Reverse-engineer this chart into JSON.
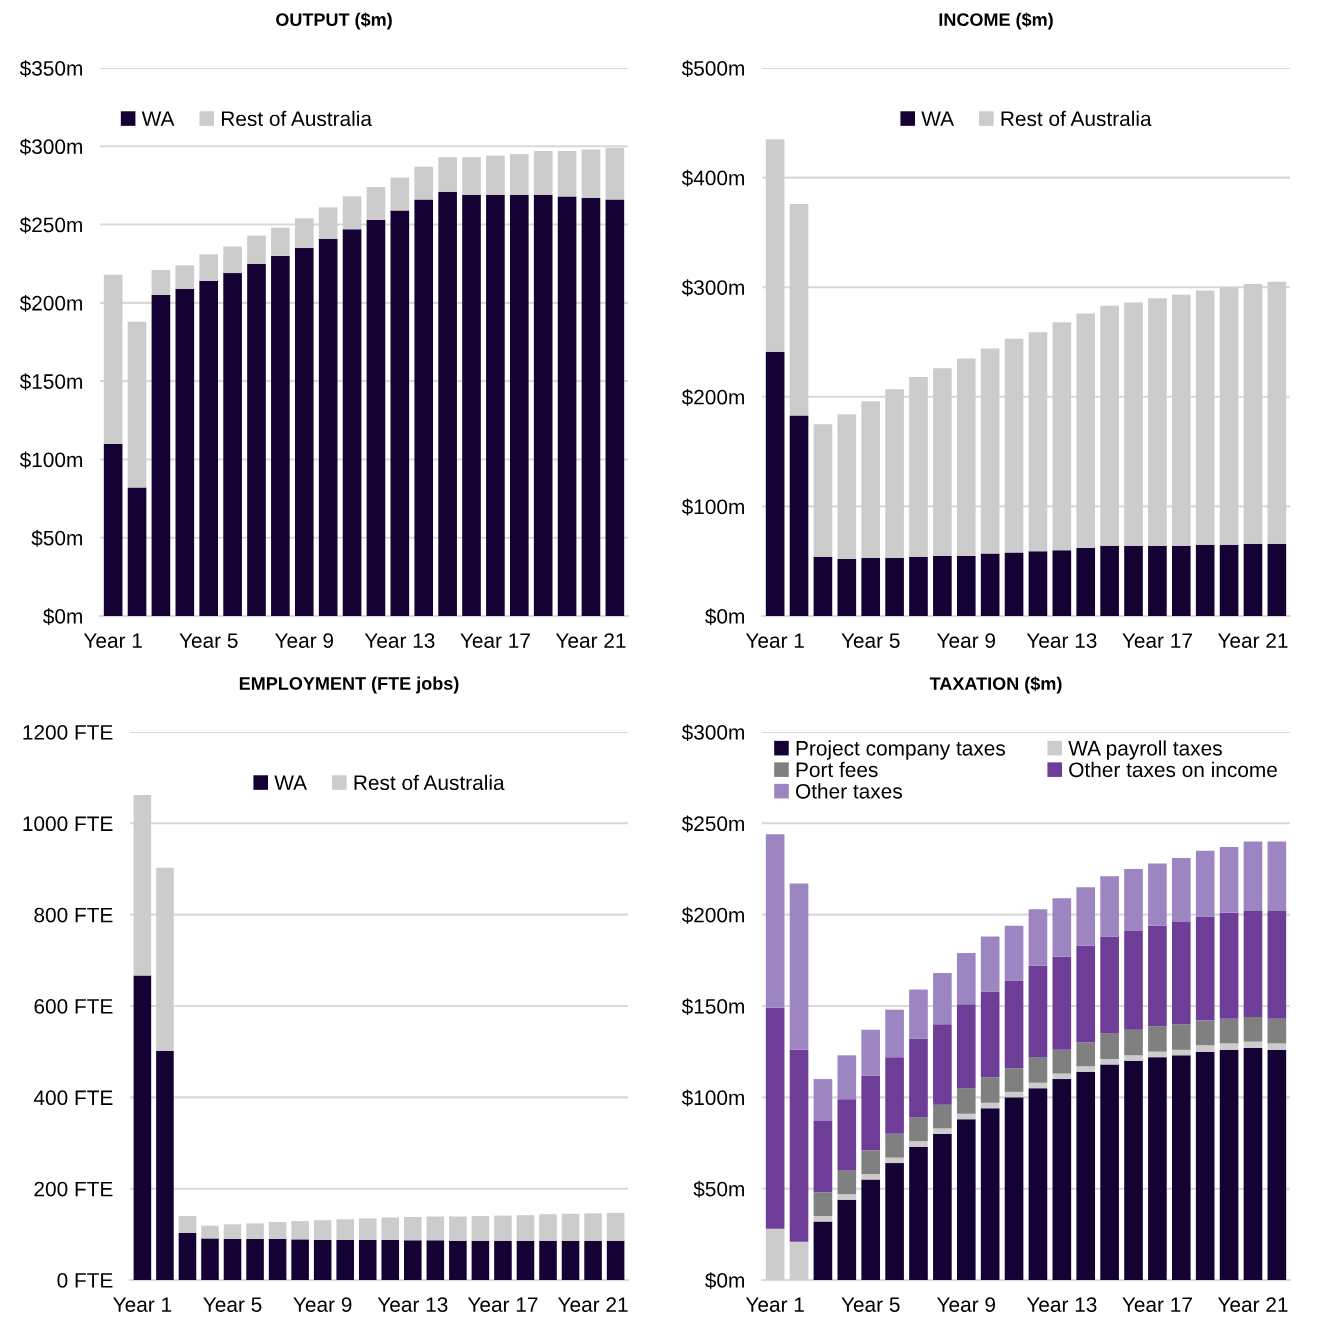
{
  "chart_data": [
    {
      "type": "bar",
      "title": "OUTPUT ($m)",
      "stacked": true,
      "legend": "top left",
      "grid": "y",
      "categories": [
        "Year 1",
        null,
        null,
        null,
        "Year 5",
        null,
        null,
        null,
        "Year 9",
        null,
        null,
        null,
        "Year 13",
        null,
        null,
        null,
        "Year 17",
        null,
        null,
        null,
        "Year 21",
        null
      ],
      "ylim": [
        0,
        350
      ],
      "yticks": [
        {
          "value": 0,
          "label": "$0m"
        },
        {
          "value": 50,
          "label": "$50m"
        },
        {
          "value": 100,
          "label": "$100m"
        },
        {
          "value": 150,
          "label": "$150m"
        },
        {
          "value": 200,
          "label": "$200m"
        },
        {
          "value": 250,
          "label": "$250m"
        },
        {
          "value": 300,
          "label": "$300m"
        },
        {
          "value": 350,
          "label": "$350m"
        }
      ],
      "series": [
        {
          "name": "WA",
          "color": "#150235",
          "values": [
            110,
            82,
            205,
            209,
            214,
            219,
            225,
            230,
            235,
            241,
            247,
            253,
            259,
            266,
            271,
            269,
            269,
            269,
            269,
            268,
            267,
            266
          ]
        },
        {
          "name": "Rest of Australia",
          "color": "#cccccc",
          "values": [
            108,
            106,
            16,
            15,
            17,
            17,
            18,
            18,
            19,
            20,
            21,
            21,
            21,
            21,
            22,
            24,
            25,
            26,
            28,
            29,
            31,
            33
          ]
        }
      ]
    },
    {
      "type": "bar",
      "title": "INCOME ($m)",
      "stacked": true,
      "legend": "top",
      "grid": "y",
      "categories": [
        "Year 1",
        null,
        null,
        null,
        "Year 5",
        null,
        null,
        null,
        "Year 9",
        null,
        null,
        null,
        "Year 13",
        null,
        null,
        null,
        "Year 17",
        null,
        null,
        null,
        "Year 21",
        null
      ],
      "ylim": [
        0,
        500
      ],
      "yticks": [
        {
          "value": 0,
          "label": "$0m"
        },
        {
          "value": 100,
          "label": "$100m"
        },
        {
          "value": 200,
          "label": "$200m"
        },
        {
          "value": 300,
          "label": "$300m"
        },
        {
          "value": 400,
          "label": "$400m"
        },
        {
          "value": 500,
          "label": "$500m"
        }
      ],
      "series": [
        {
          "name": "WA",
          "color": "#150235",
          "values": [
            241,
            183,
            54,
            52,
            53,
            53,
            54,
            55,
            55,
            57,
            58,
            59,
            60,
            62,
            64,
            64,
            64,
            64,
            65,
            65,
            66,
            66
          ]
        },
        {
          "name": "Rest of Australia",
          "color": "#cccccc",
          "values": [
            194,
            193,
            121,
            132,
            143,
            154,
            164,
            171,
            180,
            187,
            195,
            200,
            208,
            214,
            219,
            222,
            226,
            229,
            232,
            235,
            237,
            239
          ]
        }
      ]
    },
    {
      "type": "bar",
      "title": "EMPLOYMENT (FTE jobs)",
      "stacked": true,
      "legend": "top",
      "grid": "y",
      "categories": [
        "Year 1",
        null,
        null,
        null,
        "Year 5",
        null,
        null,
        null,
        "Year 9",
        null,
        null,
        null,
        "Year 13",
        null,
        null,
        null,
        "Year 17",
        null,
        null,
        null,
        "Year 21",
        null
      ],
      "ylim": [
        0,
        1200
      ],
      "yticks": [
        {
          "value": 0,
          "label": "0 FTE"
        },
        {
          "value": 200,
          "label": "200 FTE"
        },
        {
          "value": 400,
          "label": "400 FTE"
        },
        {
          "value": 600,
          "label": "600 FTE"
        },
        {
          "value": 800,
          "label": "800 FTE"
        },
        {
          "value": 1000,
          "label": "1000 FTE"
        },
        {
          "value": 1200,
          "label": "1200 FTE"
        }
      ],
      "series": [
        {
          "name": "WA",
          "color": "#150235",
          "values": [
            667,
            502,
            103,
            91,
            90,
            90,
            90,
            89,
            88,
            88,
            88,
            88,
            87,
            87,
            86,
            86,
            86,
            86,
            86,
            86,
            86,
            86
          ]
        },
        {
          "name": "Rest of Australia",
          "color": "#cccccc",
          "values": [
            395,
            401,
            37,
            28,
            32,
            34,
            37,
            40,
            43,
            45,
            47,
            49,
            51,
            52,
            53,
            54,
            55,
            56,
            58,
            59,
            60,
            61
          ]
        }
      ]
    },
    {
      "type": "bar",
      "title": "TAXATION ($m)",
      "stacked": true,
      "legend": "top",
      "grid": "y",
      "categories": [
        "Year 1",
        null,
        null,
        null,
        "Year 5",
        null,
        null,
        null,
        "Year 9",
        null,
        null,
        null,
        "Year 13",
        null,
        null,
        null,
        "Year 17",
        null,
        null,
        null,
        "Year 21",
        null
      ],
      "ylim": [
        0,
        300
      ],
      "yticks": [
        {
          "value": 0,
          "label": "$0m"
        },
        {
          "value": 50,
          "label": "$50m"
        },
        {
          "value": 100,
          "label": "$100m"
        },
        {
          "value": 150,
          "label": "$150m"
        },
        {
          "value": 200,
          "label": "$200m"
        },
        {
          "value": 250,
          "label": "$250m"
        },
        {
          "value": 300,
          "label": "$300m"
        }
      ],
      "series": [
        {
          "name": "Project company taxes",
          "color": "#150235",
          "values": [
            0,
            0,
            32,
            44,
            55,
            64,
            73,
            80,
            88,
            94,
            100,
            105,
            110,
            114,
            118,
            120,
            122,
            123,
            125,
            126,
            127,
            126
          ]
        },
        {
          "name": "WA payroll taxes",
          "color": "#cccccc",
          "values": [
            28,
            21,
            3,
            3,
            3,
            3,
            3,
            3,
            3,
            3,
            3,
            3,
            3,
            3,
            3,
            3,
            3,
            3,
            3.5,
            3.5,
            3.5,
            3.5
          ]
        },
        {
          "name": "Port fees",
          "color": "#808080",
          "values": [
            0,
            0,
            13,
            13,
            13,
            13,
            13,
            13,
            14,
            14,
            13,
            14,
            13,
            13,
            14,
            14,
            14,
            14,
            13.5,
            13.5,
            13.5,
            13.5
          ]
        },
        {
          "name": "Other taxes on income",
          "color": "#6e3d98",
          "values": [
            121,
            105,
            39,
            39,
            41,
            42,
            43,
            44,
            46,
            47,
            48,
            50,
            51,
            53,
            53,
            54,
            55,
            56,
            57,
            58,
            58,
            59
          ]
        },
        {
          "name": "Other taxes",
          "color": "#9d85c1",
          "values": [
            95,
            91,
            23,
            24,
            25,
            26,
            27,
            28,
            28,
            30,
            30,
            31,
            32,
            32,
            33,
            34,
            34,
            35,
            36,
            36,
            38,
            38
          ]
        }
      ]
    }
  ]
}
